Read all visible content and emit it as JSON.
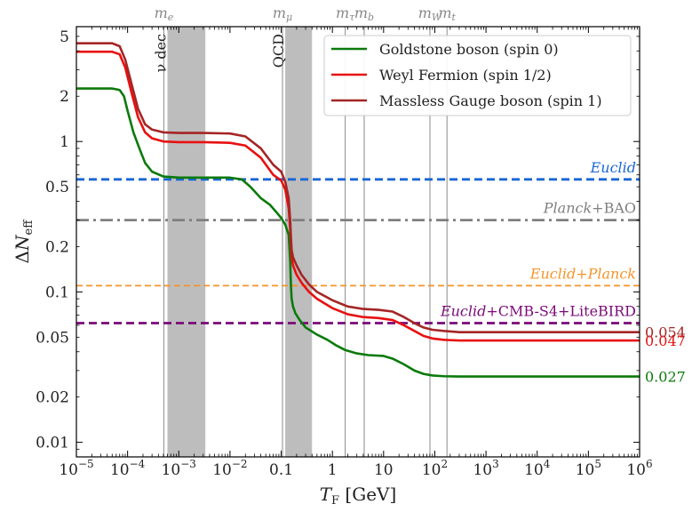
{
  "chart_data": {
    "type": "line",
    "xscale": "log",
    "yscale": "log",
    "xlim": [
      1e-05,
      1000000.0
    ],
    "ylim": [
      0.008,
      5.8
    ],
    "xlabel": {
      "main": "T",
      "sub": "F",
      "unit": "[GeV]"
    },
    "ylabel": {
      "main": "ΔN",
      "sub": "eff"
    },
    "xticks": [
      {
        "value": 1e-05,
        "base": "10",
        "exp": "−5"
      },
      {
        "value": 0.0001,
        "base": "10",
        "exp": "−4"
      },
      {
        "value": 0.001,
        "base": "10",
        "exp": "−3"
      },
      {
        "value": 0.01,
        "base": "10",
        "exp": "−2"
      },
      {
        "value": 0.1,
        "base": "0.1",
        "exp": ""
      },
      {
        "value": 1,
        "base": "1",
        "exp": ""
      },
      {
        "value": 10,
        "base": "10",
        "exp": ""
      },
      {
        "value": 100,
        "base": "10",
        "exp": "2"
      },
      {
        "value": 1000,
        "base": "10",
        "exp": "3"
      },
      {
        "value": 10000,
        "base": "10",
        "exp": "4"
      },
      {
        "value": 100000,
        "base": "10",
        "exp": "5"
      },
      {
        "value": 1000000,
        "base": "10",
        "exp": "6"
      }
    ],
    "yticks": [
      {
        "value": 0.01,
        "label": "0.01"
      },
      {
        "value": 0.02,
        "label": "0.02"
      },
      {
        "value": 0.05,
        "label": "0.05"
      },
      {
        "value": 0.1,
        "label": "0.1"
      },
      {
        "value": 0.2,
        "label": "0.2"
      },
      {
        "value": 0.5,
        "label": "0.5"
      },
      {
        "value": 1,
        "label": "1"
      },
      {
        "value": 2,
        "label": "2"
      },
      {
        "value": 5,
        "label": "5"
      }
    ],
    "mass_thresholds": [
      {
        "sym": "m",
        "sub": "e",
        "x": 0.00051
      },
      {
        "sym": "m",
        "sub": "μ",
        "x": 0.106
      },
      {
        "sym": "m",
        "sub": "τ",
        "x": 1.78
      },
      {
        "sym": "m",
        "sub": "b",
        "x": 4.18
      },
      {
        "sym": "m",
        "sub": "W",
        "x": 80.4
      },
      {
        "sym": "m",
        "sub": "t",
        "x": 173
      }
    ],
    "bands": [
      {
        "label": "ν dec",
        "x0": 0.0006,
        "x1": 0.0033
      },
      {
        "label": "QCD",
        "x0": 0.12,
        "x1": 0.4
      }
    ],
    "bounds": [
      {
        "y": 0.56,
        "color": "#1a66d6",
        "dash": "9,5",
        "width": 2.8,
        "parts": [
          {
            "t": "Euclid",
            "it": true
          }
        ]
      },
      {
        "y": 0.3,
        "color": "#7f7f7f",
        "dash": "14,5,3,5",
        "width": 2.8,
        "parts": [
          {
            "t": "Planck",
            "it": true
          },
          {
            "t": "+BAO",
            "it": false
          }
        ]
      },
      {
        "y": 0.11,
        "color": "#f5942a",
        "dash": "7,4",
        "width": 1.8,
        "parts": [
          {
            "t": "Euclid",
            "it": true
          },
          {
            "t": "+",
            "it": false
          },
          {
            "t": "Planck",
            "it": true
          }
        ]
      },
      {
        "y": 0.062,
        "color": "#7a0a78",
        "dash": "9,5",
        "width": 2.8,
        "parts": [
          {
            "t": "Euclid",
            "it": true
          },
          {
            "t": "+CMB-S4+LiteBIRD",
            "it": false
          }
        ]
      }
    ],
    "series": [
      {
        "name": "Goldstone boson (spin 0)",
        "color": "#0a7a0a",
        "end_label": "0.027",
        "x": [
          1e-05,
          5e-05,
          7e-05,
          8.5e-05,
          0.0001,
          0.00013,
          0.00017,
          0.00022,
          0.0003,
          0.0005,
          0.001,
          0.003,
          0.01,
          0.017,
          0.025,
          0.04,
          0.06,
          0.08,
          0.1,
          0.12,
          0.14,
          0.15,
          0.155,
          0.16,
          0.17,
          0.19,
          0.23,
          0.3,
          0.5,
          0.8,
          1.2,
          1.8,
          3,
          5,
          10,
          15,
          25,
          40,
          60,
          90,
          150,
          300,
          1000,
          10000,
          100000,
          1000000
        ],
        "y": [
          2.25,
          2.25,
          2.2,
          2.0,
          1.6,
          1.15,
          0.9,
          0.72,
          0.63,
          0.585,
          0.575,
          0.575,
          0.575,
          0.56,
          0.5,
          0.42,
          0.38,
          0.34,
          0.31,
          0.28,
          0.24,
          0.16,
          0.11,
          0.09,
          0.08,
          0.072,
          0.065,
          0.058,
          0.052,
          0.048,
          0.044,
          0.041,
          0.039,
          0.038,
          0.0375,
          0.036,
          0.033,
          0.03,
          0.0285,
          0.0278,
          0.0275,
          0.0274,
          0.0274,
          0.0274,
          0.0274,
          0.0274
        ]
      },
      {
        "name": "Weyl Fermion (spin 1/2)",
        "color": "#e81010",
        "end_label": "0.047",
        "x": [
          1e-05,
          5e-05,
          7e-05,
          9e-05,
          0.00012,
          0.00016,
          0.00022,
          0.0003,
          0.0005,
          0.001,
          0.003,
          0.01,
          0.02,
          0.04,
          0.07,
          0.1,
          0.12,
          0.14,
          0.15,
          0.155,
          0.16,
          0.17,
          0.2,
          0.25,
          0.35,
          0.5,
          1,
          2,
          4,
          8,
          15,
          25,
          40,
          60,
          90,
          150,
          300,
          1000,
          10000,
          100000,
          1000000
        ],
        "y": [
          3.95,
          3.95,
          3.8,
          3.1,
          2.1,
          1.45,
          1.15,
          1.05,
          1.0,
          0.99,
          0.99,
          0.98,
          0.94,
          0.78,
          0.6,
          0.55,
          0.48,
          0.36,
          0.26,
          0.2,
          0.17,
          0.15,
          0.13,
          0.115,
          0.1,
          0.09,
          0.078,
          0.071,
          0.068,
          0.067,
          0.065,
          0.06,
          0.055,
          0.051,
          0.049,
          0.048,
          0.0475,
          0.0475,
          0.0475,
          0.0475,
          0.0475
        ]
      },
      {
        "name": "Massless Gauge boson (spin 1)",
        "color": "#a52525",
        "end_label": "0.054",
        "x": [
          1e-05,
          5e-05,
          7e-05,
          9e-05,
          0.00012,
          0.00016,
          0.00022,
          0.0003,
          0.0005,
          0.001,
          0.003,
          0.01,
          0.02,
          0.04,
          0.07,
          0.1,
          0.12,
          0.14,
          0.15,
          0.155,
          0.16,
          0.17,
          0.2,
          0.25,
          0.35,
          0.5,
          1,
          2,
          4,
          8,
          15,
          25,
          40,
          60,
          90,
          150,
          300,
          1000,
          10000,
          100000,
          1000000
        ],
        "y": [
          4.5,
          4.5,
          4.3,
          3.5,
          2.4,
          1.65,
          1.3,
          1.2,
          1.15,
          1.14,
          1.14,
          1.13,
          1.08,
          0.9,
          0.7,
          0.63,
          0.54,
          0.42,
          0.3,
          0.23,
          0.19,
          0.17,
          0.15,
          0.13,
          0.112,
          0.1,
          0.088,
          0.08,
          0.077,
          0.076,
          0.074,
          0.068,
          0.062,
          0.058,
          0.056,
          0.055,
          0.054,
          0.054,
          0.054,
          0.054,
          0.054
        ]
      }
    ]
  }
}
